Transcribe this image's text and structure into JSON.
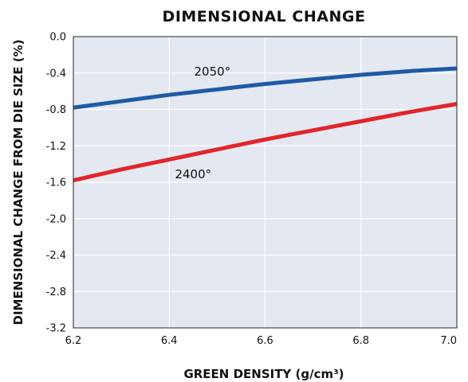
{
  "chart_data": {
    "type": "line",
    "title": "DIMENSIONAL CHANGE",
    "xlabel": "GREEN DENSITY (g/cm³)",
    "ylabel": "DIMENSIONAL CHANGE FROM DIE SIZE  (%)",
    "xlim": [
      6.2,
      7.0
    ],
    "ylim": [
      -3.2,
      0.0
    ],
    "x_ticks": [
      6.2,
      6.4,
      6.6,
      6.8,
      7.0
    ],
    "x_tick_labels": [
      "6.2",
      "6.4",
      "6.6",
      "6.8",
      "7.0"
    ],
    "y_ticks": [
      0.0,
      -0.4,
      -0.8,
      -1.2,
      -1.6,
      -2.0,
      -2.4,
      -2.8,
      -3.2
    ],
    "y_tick_labels": [
      "0.0",
      "-0.4",
      "-0.8",
      "-1.2",
      "-1.6",
      "-2.0",
      "-2.4",
      "-2.8",
      "-3.2"
    ],
    "grid": true,
    "background_color": "#e4e8f1",
    "grid_color": "#ffffff",
    "series": [
      {
        "name": "2050°",
        "color": "#1f5aa6",
        "x": [
          6.2,
          6.3,
          6.4,
          6.5,
          6.6,
          6.7,
          6.8,
          6.9,
          7.0
        ],
        "y": [
          -0.78,
          -0.71,
          -0.64,
          -0.58,
          -0.52,
          -0.47,
          -0.42,
          -0.38,
          -0.35
        ]
      },
      {
        "name": "2400°",
        "color": "#e3242b",
        "x": [
          6.2,
          6.3,
          6.4,
          6.5,
          6.6,
          6.7,
          6.8,
          6.9,
          7.0
        ],
        "y": [
          -1.58,
          -1.46,
          -1.35,
          -1.24,
          -1.13,
          -1.03,
          -0.93,
          -0.83,
          -0.74
        ]
      }
    ]
  }
}
